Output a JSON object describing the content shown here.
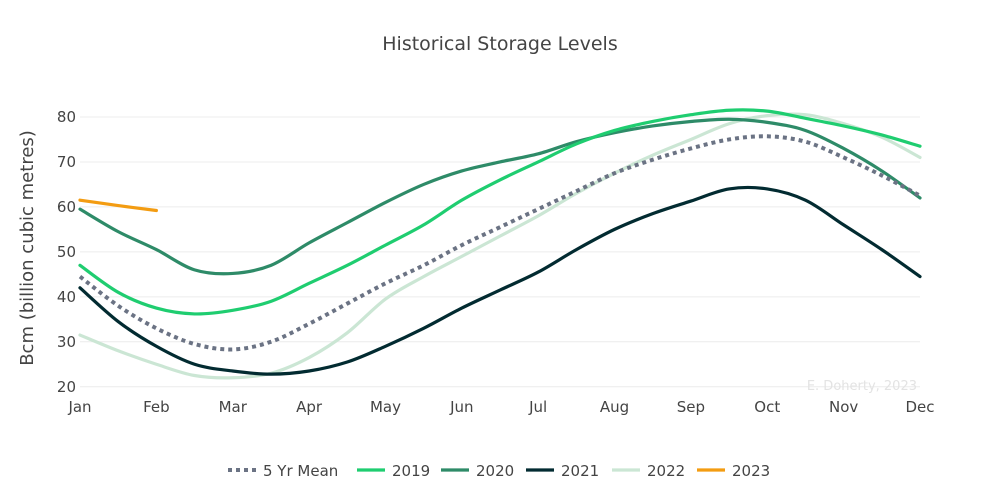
{
  "chart_data": {
    "type": "line",
    "title": "Historical Storage Levels",
    "xlabel": "",
    "ylabel": "Bcm (billion cubic metres)",
    "x_ticks": [
      "Jan",
      "Feb",
      "Mar",
      "Apr",
      "May",
      "Jun",
      "Jul",
      "Aug",
      "Sep",
      "Oct",
      "Nov",
      "Dec"
    ],
    "y_ticks": [
      20,
      30,
      40,
      50,
      60,
      70,
      80
    ],
    "ylim": [
      19.5,
      86
    ],
    "xlim": [
      0,
      11
    ],
    "grid": true,
    "legend_position": "bottom",
    "annotation": "E. Doherty, 2023",
    "series": [
      {
        "name": "5 Yr Mean",
        "color": "#6b7384",
        "dash": "dot",
        "x": [
          0,
          0.5,
          1,
          1.5,
          2,
          2.5,
          3,
          3.5,
          4,
          4.5,
          5,
          5.5,
          6,
          6.5,
          7,
          7.5,
          8,
          8.5,
          9,
          9.5,
          10,
          10.5,
          11
        ],
        "y": [
          44.5,
          38,
          33,
          29.5,
          28.3,
          30,
          34,
          38.5,
          43,
          47,
          51.5,
          55.5,
          59.5,
          63.5,
          67.5,
          70.5,
          73,
          75,
          75.7,
          74.5,
          71,
          67,
          62.5
        ]
      },
      {
        "name": "2019",
        "color": "#1fcd70",
        "x": [
          0,
          0.5,
          1,
          1.5,
          2,
          2.5,
          3,
          3.5,
          4,
          4.5,
          5,
          5.5,
          6,
          6.5,
          7,
          7.5,
          8,
          8.5,
          9,
          9.5,
          10,
          10.5,
          11
        ],
        "y": [
          47,
          41,
          37.5,
          36.2,
          37,
          39,
          43,
          47,
          51.5,
          56,
          61.5,
          66,
          70,
          74,
          77,
          79,
          80.5,
          81.5,
          81.3,
          79.7,
          78,
          76,
          73.5
        ]
      },
      {
        "name": "2020",
        "color": "#2e8b68",
        "x": [
          0,
          0.5,
          1,
          1.5,
          2,
          2.5,
          3,
          3.5,
          4,
          4.5,
          5,
          5.5,
          6,
          6.5,
          7,
          7.5,
          8,
          8.5,
          9,
          9.5,
          10,
          10.5,
          11
        ],
        "y": [
          59.5,
          54.5,
          50.5,
          46,
          45.2,
          47,
          52,
          56.5,
          61,
          65,
          68,
          70,
          71.8,
          74.5,
          76.5,
          78,
          79,
          79.5,
          78.8,
          77,
          73,
          68,
          62
        ]
      },
      {
        "name": "2021",
        "color": "#022b31",
        "x": [
          0,
          0.5,
          1,
          1.5,
          2,
          2.5,
          3,
          3.5,
          4,
          4.5,
          5,
          5.5,
          6,
          6.5,
          7,
          7.5,
          8,
          8.5,
          9,
          9.5,
          10,
          10.5,
          11
        ],
        "y": [
          42,
          34.5,
          29,
          25,
          23.5,
          22.8,
          23.5,
          25.5,
          29,
          33,
          37.5,
          41.5,
          45.5,
          50.5,
          55,
          58.5,
          61.3,
          64,
          64,
          61.5,
          56,
          50.5,
          44.5
        ]
      },
      {
        "name": "2022",
        "color": "#cbe6d4",
        "x": [
          0,
          0.5,
          1,
          1.5,
          2,
          2.5,
          3,
          3.5,
          4,
          4.5,
          5,
          5.5,
          6,
          6.5,
          7,
          7.5,
          8,
          8.5,
          9,
          9.5,
          10,
          10.5,
          11
        ],
        "y": [
          31.5,
          28,
          25,
          22.5,
          22,
          23,
          26.5,
          32,
          39.5,
          44.5,
          49,
          53.5,
          58,
          63,
          67.5,
          71.5,
          75,
          78.5,
          80.3,
          80.5,
          78.5,
          75.5,
          71
        ]
      },
      {
        "name": "2023",
        "color": "#f39c12",
        "x": [
          0,
          0.5,
          1
        ],
        "y": [
          61.5,
          60.3,
          59.2
        ]
      }
    ]
  }
}
